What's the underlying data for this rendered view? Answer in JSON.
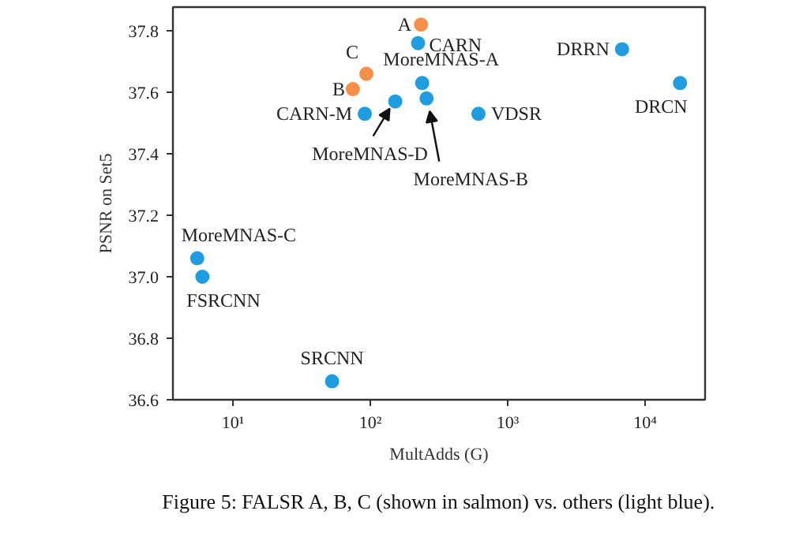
{
  "chart_data": {
    "type": "scatter",
    "xlabel": "MultAdds (G)",
    "ylabel": "PSNR on Set5",
    "log": "x",
    "marker": "circle",
    "grid": false,
    "xlim": [
      3.66,
      27350
    ],
    "ylim": [
      36.6,
      37.877
    ],
    "xticks": [
      {
        "value": 10,
        "label": "10¹"
      },
      {
        "value": 100,
        "label": "10²"
      },
      {
        "value": 1000,
        "label": "10³"
      },
      {
        "value": 10000,
        "label": "10⁴"
      }
    ],
    "yticks": [
      36.6,
      36.8,
      {
        "value": 37.0,
        "label": "37.0"
      },
      37.2,
      37.4,
      37.6,
      37.8
    ],
    "series": [
      {
        "color": "#f4904a",
        "x": [
          234,
          74.7,
          93.7
        ],
        "values": [
          37.82,
          37.61,
          37.66
        ]
      },
      {
        "color": "#1f9de0",
        "x": [
          222.8,
          91.2,
          152,
          238.6,
          256.9,
          612.6,
          6797,
          17974,
          5.5,
          6.0,
          52.7
        ],
        "values": [
          37.76,
          37.53,
          37.57,
          37.63,
          37.58,
          37.53,
          37.74,
          37.63,
          37.06,
          37.0,
          36.66
        ]
      }
    ],
    "annotations": [
      {
        "text": "A",
        "x": 234,
        "y": 37.82
      },
      {
        "text": "B",
        "x": 74.7,
        "y": 37.61
      },
      {
        "text": "C",
        "x": 93.7,
        "y": 37.66
      },
      {
        "text": "CARN",
        "x": 222.8,
        "y": 37.76
      },
      {
        "text": "CARN-M",
        "x": 91.2,
        "y": 37.53
      },
      {
        "text": "MoreMNAS-D",
        "x": 152,
        "y": 37.57
      },
      {
        "text": "MoreMNAS-A",
        "x": 238.6,
        "y": 37.63
      },
      {
        "text": "MoreMNAS-B",
        "x": 256.9,
        "y": 37.58
      },
      {
        "text": "VDSR",
        "x": 612.6,
        "y": 37.53
      },
      {
        "text": "DRRN",
        "x": 6797,
        "y": 37.74
      },
      {
        "text": "DRCN",
        "x": 17974,
        "y": 37.63
      },
      {
        "text": "MoreMNAS-C",
        "x": 5.5,
        "y": 37.06
      },
      {
        "text": "FSRCNN",
        "x": 6.0,
        "y": 37.0
      },
      {
        "text": "SRCNN",
        "x": 52.7,
        "y": 36.66
      },
      "Figure 5: FALSR A, B, C (shown in salmon) vs. others (light blue)."
    ]
  }
}
